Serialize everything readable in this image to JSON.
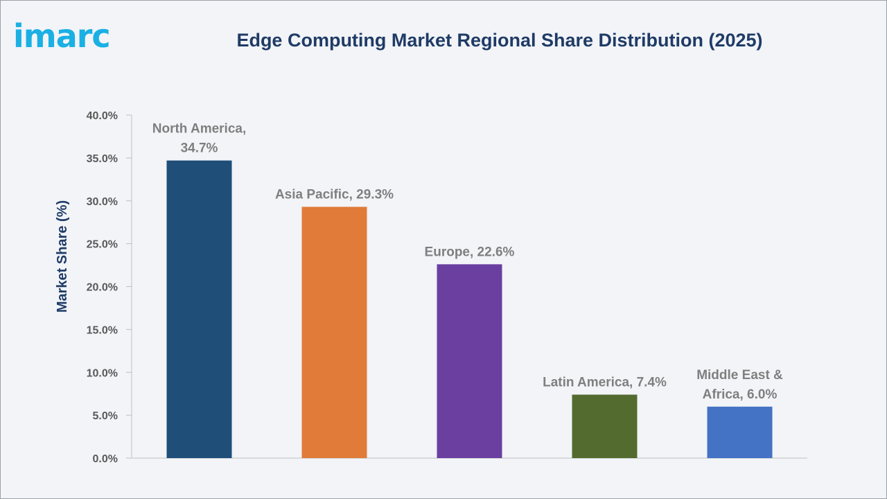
{
  "brand": {
    "logo_text": "imarc"
  },
  "chart_data": {
    "type": "bar",
    "title": "Edge Computing Market Regional Share Distribution (2025)",
    "xlabel": "",
    "ylabel": "Market Share (%)",
    "ylim": [
      0,
      40
    ],
    "ytick_step": 5,
    "ytick_labels": [
      "0.0%",
      "5.0%",
      "10.0%",
      "15.0%",
      "20.0%",
      "25.0%",
      "30.0%",
      "35.0%",
      "40.0%"
    ],
    "grid": false,
    "categories": [
      "North America",
      "Asia Pacific",
      "Europe",
      "Latin America",
      "Middle East & Africa"
    ],
    "values": [
      34.7,
      29.3,
      22.6,
      7.4,
      6.0
    ],
    "data_labels": [
      [
        "North America,",
        "34.7%"
      ],
      [
        "Asia Pacific, 29.3%"
      ],
      [
        "Europe, 22.6%"
      ],
      [
        "Latin America, 7.4%"
      ],
      [
        "Middle East &",
        "Africa, 6.0%"
      ]
    ],
    "colors": [
      "#1f4e79",
      "#e07b39",
      "#6b3fa0",
      "#546b2f",
      "#4472c4"
    ]
  }
}
